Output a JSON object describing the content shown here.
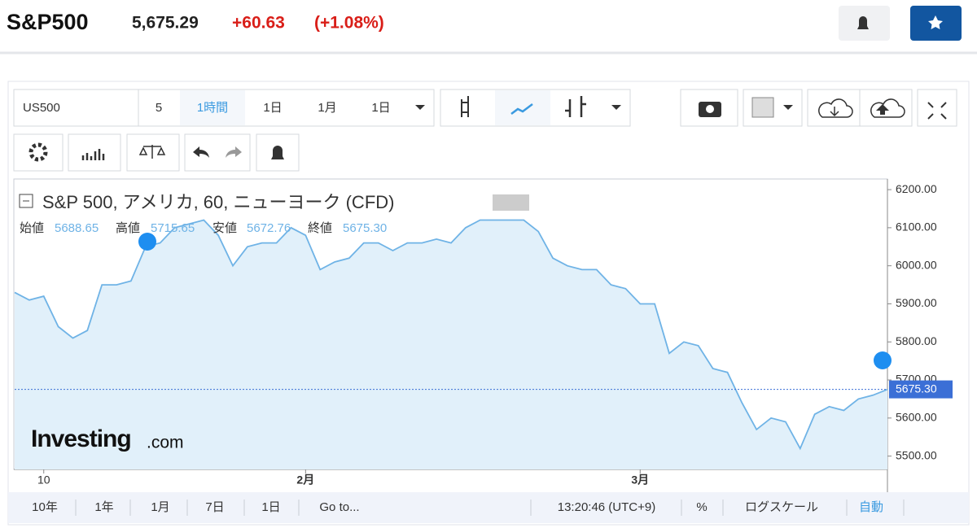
{
  "header": {
    "symbol": "S&P500",
    "price": "5,675.29",
    "change": "+60.63",
    "change_pct": "(+1.08%)"
  },
  "toolbar": {
    "symbol": "US500",
    "items": [
      "5",
      "1時間",
      "1日",
      "1月",
      "1日"
    ]
  },
  "chart_data": {
    "type": "line",
    "title": "S&P 500, アメリカ, 60, ニューヨーク (CFD)",
    "ohlc": [
      {
        "name": "始値",
        "value": 5688.65
      },
      {
        "name": "高値",
        "value": 5715.65
      },
      {
        "name": "安値",
        "value": 5672.76
      },
      {
        "name": "終値",
        "value": 5675.3,
        "label": "5675.30"
      }
    ],
    "categories": [
      null,
      null,
      "10",
      null,
      null,
      null,
      null,
      null,
      null,
      null,
      null,
      null,
      null,
      null,
      null,
      null,
      null,
      null,
      null,
      null,
      "2月",
      null,
      null,
      null,
      null,
      null,
      null,
      null,
      null,
      null,
      null,
      null,
      null,
      null,
      null,
      null,
      null,
      null,
      null,
      null,
      null,
      null,
      null,
      "3月",
      null,
      null,
      null,
      null,
      null,
      null,
      null,
      null,
      null,
      null,
      null,
      null,
      null,
      null,
      null,
      null,
      null
    ],
    "series": [
      {
        "name": "S&P 500",
        "color": "#6fb3e6",
        "values": [
          5930,
          5910,
          5920,
          5840,
          5810,
          5830,
          5950,
          5950,
          5960,
          6050,
          6060,
          6100,
          6110,
          6120,
          6080,
          6000,
          6050,
          6060,
          6060,
          6100,
          6080,
          5990,
          6010,
          6020,
          6060,
          6060,
          6040,
          6060,
          6060,
          6070,
          6060,
          6100,
          6120,
          6120,
          6120,
          6120,
          6090,
          6020,
          6000,
          5990,
          5990,
          5950,
          5940,
          5900,
          5900,
          5770,
          5800,
          5790,
          5730,
          5720,
          5640,
          5570,
          5600,
          5590,
          5520,
          5610,
          5630,
          5620,
          5650,
          5660,
          5675
        ]
      }
    ],
    "ylim": [
      5465,
      6228
    ],
    "yticks": [
      {
        "value": 5500,
        "label": "5500.00"
      },
      {
        "value": 5600,
        "label": "5600.00"
      },
      {
        "value": 5700,
        "label": "5700.00"
      },
      {
        "value": 5800,
        "label": "5800.00"
      },
      {
        "value": 5900,
        "label": "5900.00"
      },
      {
        "value": 6000,
        "label": "6000.00"
      },
      {
        "value": 6100,
        "label": "6100.00"
      },
      {
        "value": 6200,
        "label": "6200.00"
      }
    ],
    "grid": false,
    "watermark": {
      "brand": "Investing",
      "suffix": ".com"
    }
  },
  "bottom_bar": {
    "ranges": [
      "10年",
      "1年",
      "1月",
      "7日",
      "1日"
    ],
    "goto": "Go to...",
    "time": "13:20:46 (UTC+9)",
    "percent": "%",
    "log": "ログスケール",
    "auto": "自動"
  }
}
